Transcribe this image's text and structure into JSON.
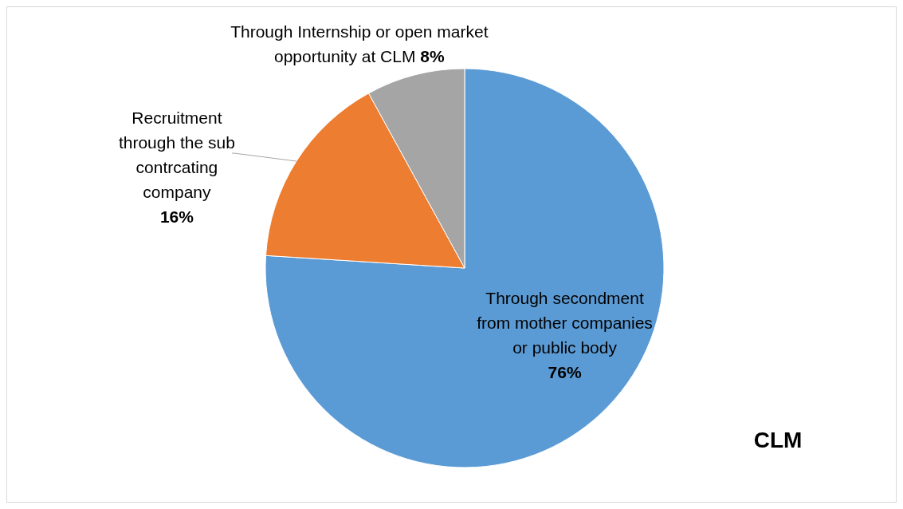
{
  "chart_data": {
    "type": "pie",
    "title": "CLM",
    "categories": [
      "Through secondment from mother companies or public body",
      "Recruitment through the sub contrcating company",
      "Through Internship or open market opportunity  at CLM"
    ],
    "values": [
      76,
      16,
      8
    ],
    "colors": [
      "#5b9bd5",
      "#ed7d31",
      "#a5a5a5"
    ],
    "value_labels": [
      "76%",
      "16%",
      "8%"
    ]
  }
}
